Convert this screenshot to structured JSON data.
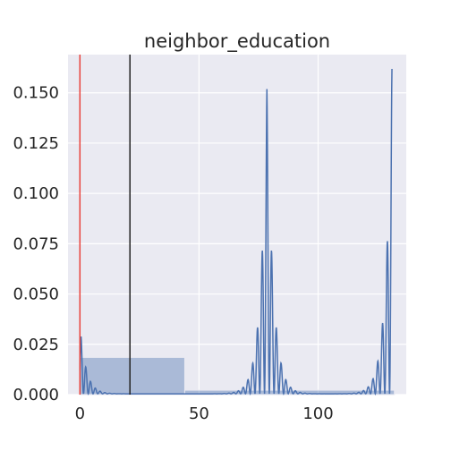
{
  "chart_data": {
    "type": "histogram+kde",
    "title": "neighbor_education",
    "xlabel": "",
    "ylabel": "",
    "xlim": [
      -5,
      137
    ],
    "ylim": [
      0,
      0.169
    ],
    "x_ticks": [
      0,
      50,
      100
    ],
    "x_tick_labels": [
      "0",
      "50",
      "100"
    ],
    "y_ticks": [
      0.0,
      0.025,
      0.05,
      0.075,
      0.1,
      0.125,
      0.15
    ],
    "y_tick_labels": [
      "0.000",
      "0.025",
      "0.050",
      "0.075",
      "0.100",
      "0.125",
      "0.150"
    ],
    "grid": true,
    "background": "#eaeaf2",
    "series_color": "#4c72b0",
    "histogram_bins": [
      {
        "x0": 0,
        "x1": 44,
        "density": 0.0185
      },
      {
        "x0": 44,
        "x1": 88,
        "density": 0.0022
      },
      {
        "x0": 88,
        "x1": 132,
        "density": 0.0022
      }
    ],
    "kde_peaks": [
      {
        "x": 0.5,
        "height": 0.0285
      },
      {
        "x": 78.5,
        "height": 0.1515
      },
      {
        "x": 131,
        "height": 0.1615
      }
    ],
    "vlines": [
      {
        "x": 0,
        "color": "#e8413a"
      },
      {
        "x": 21,
        "color": "#222222"
      }
    ]
  }
}
